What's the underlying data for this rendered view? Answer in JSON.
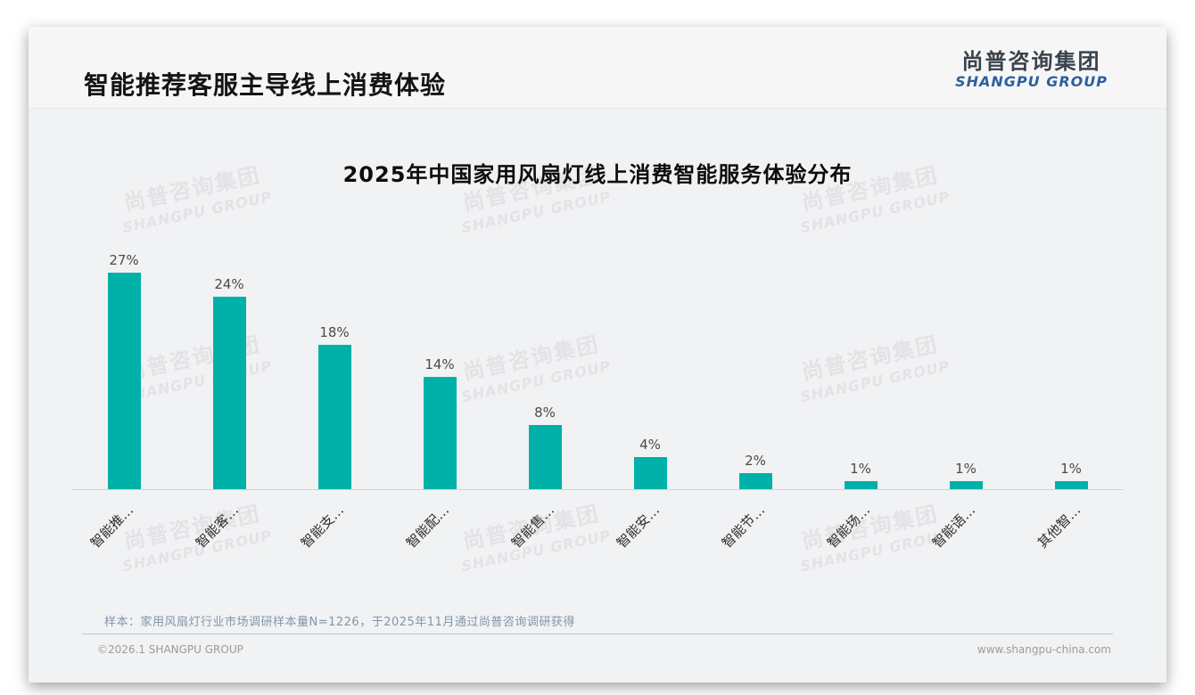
{
  "header": {
    "title": "智能推荐客服主导线上消费体验",
    "logo": {
      "cn": "尚普咨询集团",
      "en": "SHANGPU GROUP",
      "en_color": "#2d5f9e"
    }
  },
  "watermark": {
    "line1": "尚普咨询集团",
    "line2": "SHANGPU GROUP"
  },
  "chart_data": {
    "type": "bar",
    "title": "2025年中国家用风扇灯线上消费智能服务体验分布",
    "categories": [
      "智能推…",
      "智能客…",
      "智能支…",
      "智能配…",
      "智能售…",
      "智能安…",
      "智能节…",
      "智能场…",
      "智能语…",
      "其他智…"
    ],
    "values": [
      27,
      24,
      18,
      14,
      8,
      4,
      2,
      1,
      1,
      1
    ],
    "value_labels": [
      "27%",
      "24%",
      "18%",
      "14%",
      "8%",
      "4%",
      "2%",
      "1%",
      "1%",
      "1%"
    ],
    "unit": "%",
    "bar_color": "#00b1a9",
    "ylim": [
      0,
      28
    ],
    "grid": false,
    "legend_visible": false,
    "y_axis_visible": false,
    "x_label_rotation_deg": -45
  },
  "footer": {
    "note": "样本：家用风扇灯行业市场调研样本量N=1226，于2025年11月通过尚普咨询调研获得",
    "copyright": "©2026.1 SHANGPU GROUP",
    "website": "www.shangpu-china.com"
  }
}
